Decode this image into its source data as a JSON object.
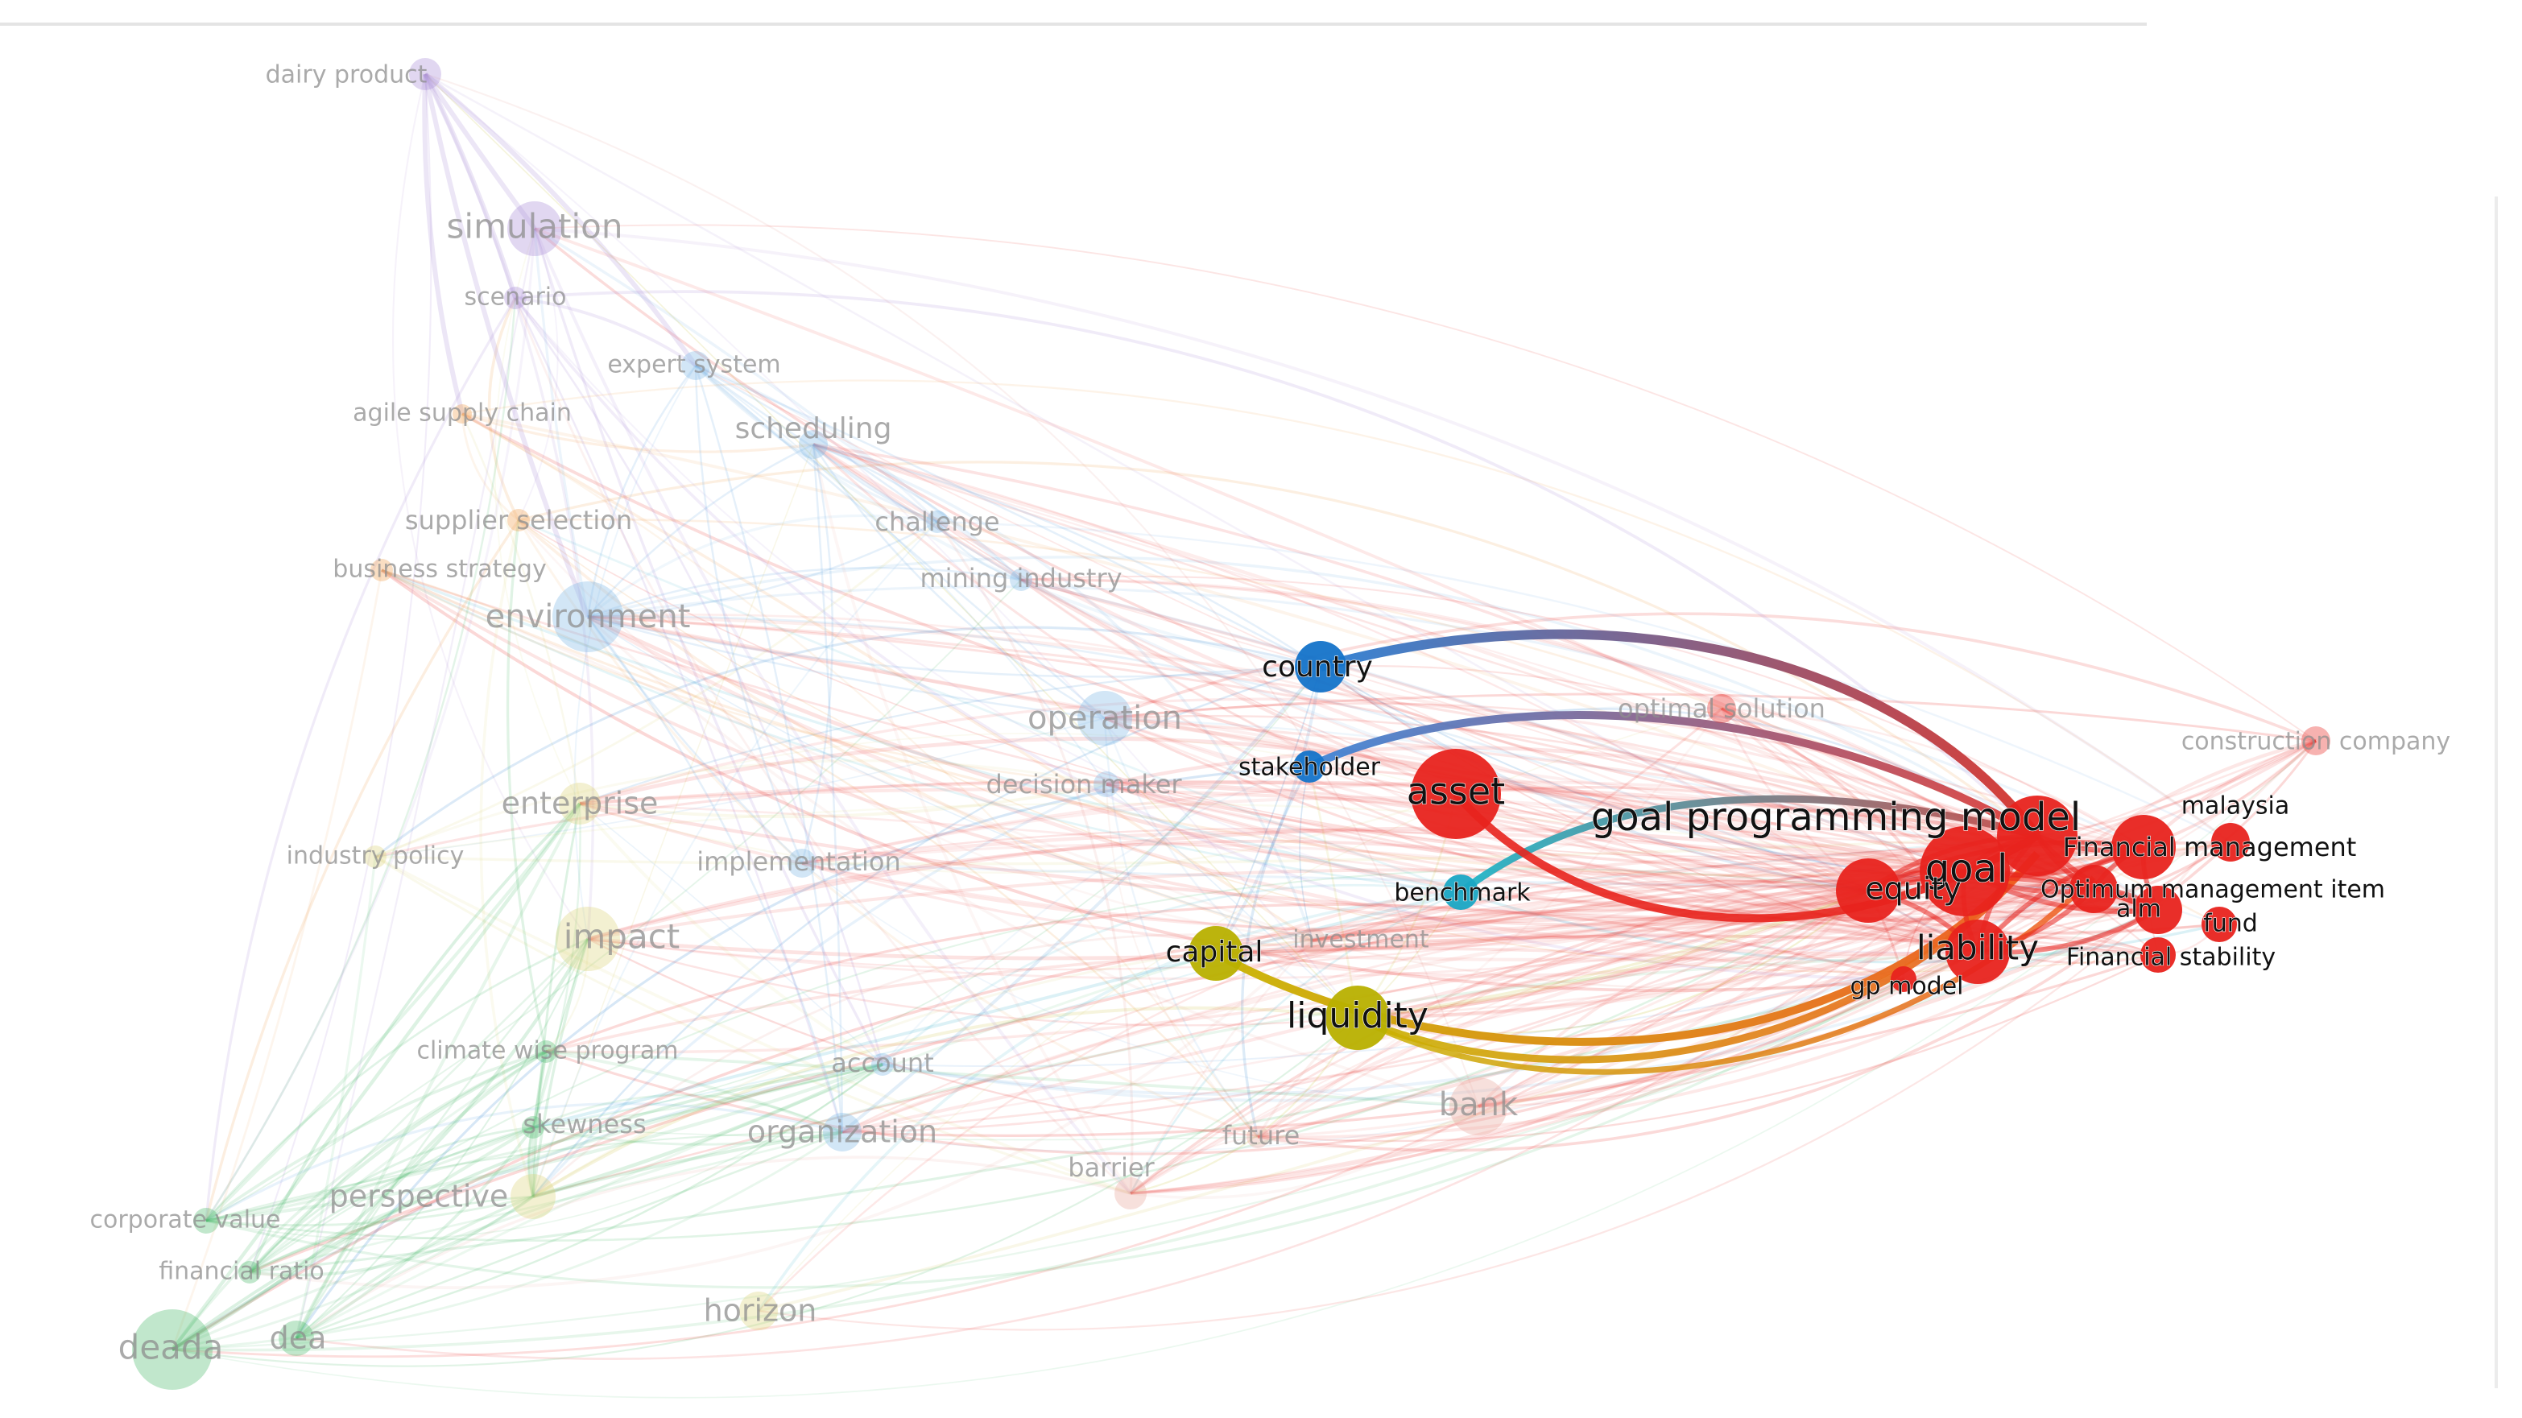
{
  "map": {
    "type": "keyword co-occurrence network",
    "highlighted_item": "goal programming model",
    "clusters": {
      "red": "#e8231d",
      "yellow": "#b8b000",
      "blue": "#1473c9",
      "cyan": "#1aa6c4",
      "purple": "#a98bd6",
      "green": "#4dbb6c",
      "orange": "#f0a050",
      "lightblue": "#7fb6e6",
      "salmon": "#e7a69c",
      "olive": "#dcd37a"
    },
    "nodes": [
      {
        "id": "dairy",
        "label": "dairy product",
        "cluster": "purple",
        "faded": true
      },
      {
        "id": "simulation",
        "label": "simulation",
        "cluster": "purple",
        "faded": true
      },
      {
        "id": "scenario",
        "label": "scenario",
        "cluster": "purple",
        "faded": true
      },
      {
        "id": "expertsystem",
        "label": "expert system",
        "cluster": "lightblue",
        "faded": true
      },
      {
        "id": "agile",
        "label": "agile supply chain",
        "cluster": "orange",
        "faded": true
      },
      {
        "id": "scheduling",
        "label": "scheduling",
        "cluster": "lightblue",
        "faded": true
      },
      {
        "id": "supplier",
        "label": "supplier selection",
        "cluster": "orange",
        "faded": true
      },
      {
        "id": "business",
        "label": "business strategy",
        "cluster": "orange",
        "faded": true
      },
      {
        "id": "challenge",
        "label": "challenge",
        "cluster": "lightblue",
        "faded": true
      },
      {
        "id": "mining",
        "label": "mining industry",
        "cluster": "lightblue",
        "faded": true
      },
      {
        "id": "environment",
        "label": "environment",
        "cluster": "lightblue",
        "faded": true
      },
      {
        "id": "country",
        "label": "country",
        "cluster": "blue",
        "faded": false
      },
      {
        "id": "operation",
        "label": "operation",
        "cluster": "lightblue",
        "faded": true
      },
      {
        "id": "optimal",
        "label": "optimal solution",
        "cluster": "red",
        "faded": true
      },
      {
        "id": "construction",
        "label": "construction company",
        "cluster": "red",
        "faded": true
      },
      {
        "id": "stakeholder",
        "label": "stakeholder",
        "cluster": "blue",
        "faded": false
      },
      {
        "id": "asset",
        "label": "asset",
        "cluster": "red",
        "faded": false
      },
      {
        "id": "decision",
        "label": "decision maker",
        "cluster": "lightblue",
        "faded": true
      },
      {
        "id": "enterprise",
        "label": "enterprise",
        "cluster": "olive",
        "faded": true
      },
      {
        "id": "gpm",
        "label": "goal programming model",
        "cluster": "red",
        "faded": false
      },
      {
        "id": "malaysia",
        "label": "malaysia",
        "cluster": "red",
        "faded": false
      },
      {
        "id": "finmgmt",
        "label": "Financial management",
        "cluster": "red",
        "faded": false
      },
      {
        "id": "industrypolicy",
        "label": "industry policy",
        "cluster": "olive",
        "faded": true
      },
      {
        "id": "implementation",
        "label": "implementation",
        "cluster": "lightblue",
        "faded": true
      },
      {
        "id": "goal",
        "label": "goal",
        "cluster": "red",
        "faded": false
      },
      {
        "id": "equity",
        "label": "equity",
        "cluster": "red",
        "faded": false
      },
      {
        "id": "optimum",
        "label": "Optimum management item",
        "cluster": "red",
        "faded": false
      },
      {
        "id": "benchmark",
        "label": "benchmark",
        "cluster": "cyan",
        "faded": false
      },
      {
        "id": "alm",
        "label": "alm",
        "cluster": "red",
        "faded": false
      },
      {
        "id": "fund",
        "label": "fund",
        "cluster": "red",
        "faded": false
      },
      {
        "id": "impact",
        "label": "impact",
        "cluster": "olive",
        "faded": true
      },
      {
        "id": "investment",
        "label": "investment",
        "cluster": "salmon",
        "faded": true
      },
      {
        "id": "capital",
        "label": "capital",
        "cluster": "yellow",
        "faded": false
      },
      {
        "id": "liability",
        "label": "liability",
        "cluster": "red",
        "faded": false
      },
      {
        "id": "finstab",
        "label": "Financial stability",
        "cluster": "red",
        "faded": false
      },
      {
        "id": "gpmodel",
        "label": "gp model",
        "cluster": "red",
        "faded": false
      },
      {
        "id": "liquidity",
        "label": "liquidity",
        "cluster": "yellow",
        "faded": false
      },
      {
        "id": "climate",
        "label": "climate wise program",
        "cluster": "green",
        "faded": true
      },
      {
        "id": "account",
        "label": "account",
        "cluster": "lightblue",
        "faded": true
      },
      {
        "id": "bank",
        "label": "bank",
        "cluster": "salmon",
        "faded": true
      },
      {
        "id": "skewness",
        "label": "skewness",
        "cluster": "green",
        "faded": true
      },
      {
        "id": "organization",
        "label": "organization",
        "cluster": "lightblue",
        "faded": true
      },
      {
        "id": "future",
        "label": "future",
        "cluster": "salmon",
        "faded": true
      },
      {
        "id": "barrier",
        "label": "barrier",
        "cluster": "salmon",
        "faded": true
      },
      {
        "id": "perspective",
        "label": "perspective",
        "cluster": "olive",
        "faded": true
      },
      {
        "id": "corporate",
        "label": "corporate value",
        "cluster": "green",
        "faded": true
      },
      {
        "id": "finratio",
        "label": "financial ratio",
        "cluster": "green",
        "faded": true
      },
      {
        "id": "horizon",
        "label": "horizon",
        "cluster": "olive",
        "faded": true
      },
      {
        "id": "deada",
        "label": "deada",
        "cluster": "green",
        "faded": true
      },
      {
        "id": "dea",
        "label": "dea",
        "cluster": "green",
        "faded": true
      }
    ]
  }
}
